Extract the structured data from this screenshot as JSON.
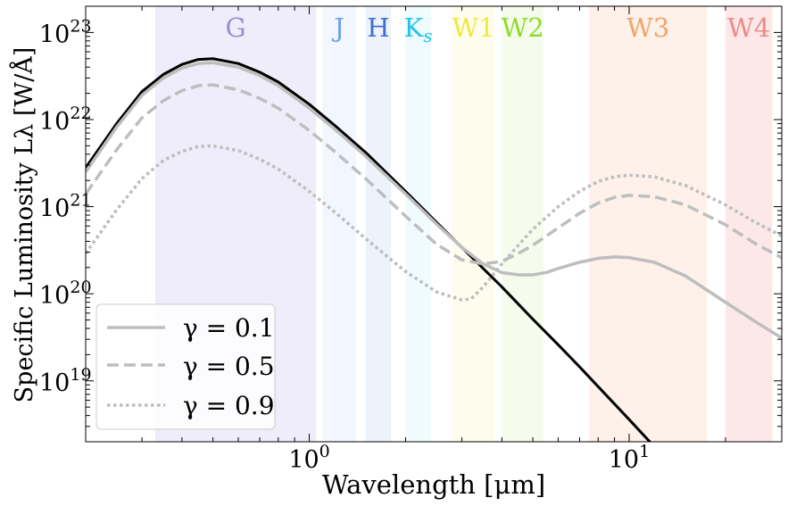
{
  "chart_data": {
    "type": "line",
    "xlabel": "Wavelength [μm]",
    "ylabel": "Specific Luminosity Lλ [W/Å]",
    "x_scale": "log",
    "y_scale": "log",
    "xlim": [
      0.2,
      30
    ],
    "ylim": [
      2e+18,
      2e+23
    ],
    "grid": false,
    "legend_position": "lower-left",
    "x_ticks": [
      {
        "value": 1,
        "label": "10",
        "exp": "0"
      },
      {
        "value": 10,
        "label": "10",
        "exp": "1"
      }
    ],
    "y_ticks": [
      {
        "value": 1e+19,
        "label": "10",
        "exp": "19"
      },
      {
        "value": 1e+20,
        "label": "10",
        "exp": "20"
      },
      {
        "value": 1e+21,
        "label": "10",
        "exp": "21"
      },
      {
        "value": 1e+22,
        "label": "10",
        "exp": "22"
      },
      {
        "value": 1e+23,
        "label": "10",
        "exp": "23"
      }
    ],
    "bands": [
      {
        "name": "G",
        "range": [
          0.33,
          1.05
        ],
        "color": "#9b8fd9",
        "fill_opacity": 0.16
      },
      {
        "name": "J",
        "range": [
          1.1,
          1.4
        ],
        "color": "#6f9ff0",
        "fill_opacity": 0.09
      },
      {
        "name": "H",
        "range": [
          1.5,
          1.8
        ],
        "color": "#3f6fd6",
        "fill_opacity": 0.09
      },
      {
        "name": "Ks",
        "range": [
          2.0,
          2.4
        ],
        "color": "#22c3ee",
        "fill_opacity": 0.07
      },
      {
        "name": "W1",
        "range": [
          2.8,
          3.8
        ],
        "color": "#f0e83c",
        "fill_opacity": 0.09
      },
      {
        "name": "W2",
        "range": [
          4.0,
          5.4
        ],
        "color": "#8ddc2a",
        "fill_opacity": 0.09
      },
      {
        "name": "W3",
        "range": [
          7.5,
          17.5
        ],
        "color": "#f4a46a",
        "fill_opacity": 0.15
      },
      {
        "name": "W4",
        "range": [
          20,
          28
        ],
        "color": "#ee8a8a",
        "fill_opacity": 0.2
      }
    ],
    "series": [
      {
        "style": "solid",
        "color": "#000000",
        "x": [
          0.2,
          0.25,
          0.3,
          0.35,
          0.4,
          0.45,
          0.5,
          0.6,
          0.7,
          0.8,
          1.0,
          1.2,
          1.5,
          2.0,
          2.5,
          3.0,
          4.0,
          5.0,
          6.0,
          7.0,
          8.0,
          10.0,
          12.0,
          15.0
        ],
        "y": [
          2.8e+21,
          9e+21,
          2.1e+22,
          3.3e+22,
          4.3e+22,
          4.9e+22,
          5e+22,
          4.4e+22,
          3.5e+22,
          2.7e+22,
          1.5e+22,
          8.6e+21,
          4.2e+21,
          1.5e+21,
          6.6e+20,
          3.4e+20,
          1.2e+20,
          5.1e+19,
          2.6e+19,
          1.45e+19,
          8.6e+18,
          3.6e+18,
          1.75e+18,
          7.5e+17
        ]
      },
      {
        "name": "γ = 0.1",
        "style": "solid",
        "color": "#bebebe",
        "x": [
          0.2,
          0.25,
          0.3,
          0.35,
          0.4,
          0.45,
          0.5,
          0.6,
          0.7,
          0.8,
          1.0,
          1.2,
          1.5,
          2.0,
          2.5,
          3.0,
          3.5,
          4.0,
          4.5,
          5.0,
          5.5,
          6.0,
          7.0,
          8.0,
          9.0,
          10.0,
          12.0,
          15.0,
          20.0,
          25.0,
          30.0
        ],
        "y": [
          2.5e+21,
          8.2e+21,
          1.9e+22,
          3e+22,
          3.9e+22,
          4.4e+22,
          4.5e+22,
          4e+22,
          3.2e+22,
          2.45e+22,
          1.35e+22,
          7.8e+21,
          3.8e+21,
          1.4e+21,
          6.3e+20,
          3.4e+20,
          2.2e+20,
          1.75e+20,
          1.65e+20,
          1.65e+20,
          1.75e+20,
          1.95e+20,
          2.3e+20,
          2.55e+20,
          2.65e+20,
          2.6e+20,
          2.3e+20,
          1.6e+20,
          8e+19,
          4.7e+19,
          3.1e+19
        ]
      },
      {
        "name": "γ = 0.5",
        "style": "dashed",
        "color": "#bebebe",
        "x": [
          0.2,
          0.25,
          0.3,
          0.35,
          0.4,
          0.45,
          0.5,
          0.6,
          0.7,
          0.8,
          1.0,
          1.2,
          1.5,
          2.0,
          2.5,
          3.0,
          3.5,
          4.0,
          4.5,
          5.0,
          6.0,
          7.0,
          8.0,
          9.0,
          10.0,
          12.0,
          15.0,
          20.0,
          25.0,
          30.0
        ],
        "y": [
          1.4e+21,
          4.5e+21,
          1.05e+22,
          1.65e+22,
          2.15e+22,
          2.45e+22,
          2.5e+22,
          2.2e+22,
          1.75e+22,
          1.35e+22,
          7.5e+21,
          4.3e+21,
          2.1e+21,
          7.8e+20,
          3.7e+20,
          2.45e+20,
          2.2e+20,
          2.35e+20,
          2.9e+20,
          3.6e+20,
          5.7e+20,
          8.4e+20,
          1.1e+21,
          1.28e+21,
          1.35e+21,
          1.3e+21,
          1.05e+21,
          6.2e+20,
          3.7e+20,
          2.6e+20
        ]
      },
      {
        "name": "γ = 0.9",
        "style": "dotted",
        "color": "#bebebe",
        "x": [
          0.2,
          0.25,
          0.3,
          0.35,
          0.4,
          0.45,
          0.5,
          0.6,
          0.7,
          0.8,
          1.0,
          1.2,
          1.5,
          2.0,
          2.5,
          3.0,
          3.2,
          3.5,
          4.0,
          4.5,
          5.0,
          6.0,
          7.0,
          8.0,
          9.0,
          10.0,
          12.0,
          15.0,
          20.0,
          25.0,
          30.0
        ],
        "y": [
          2.9e+20,
          9.2e+20,
          2.1e+21,
          3.4e+21,
          4.3e+21,
          4.9e+21,
          5e+21,
          4.4e+21,
          3.5e+21,
          2.7e+21,
          1.5e+21,
          8.7e+20,
          4.3e+20,
          1.8e+20,
          1.05e+20,
          8.5e+19,
          8.7e+19,
          1.2e+20,
          2.2e+20,
          3.6e+20,
          5.5e+20,
          1e+21,
          1.5e+21,
          1.95e+21,
          2.2e+21,
          2.3e+21,
          2.2e+21,
          1.75e+21,
          1.05e+21,
          6.5e+20,
          4.6e+20
        ]
      }
    ]
  }
}
